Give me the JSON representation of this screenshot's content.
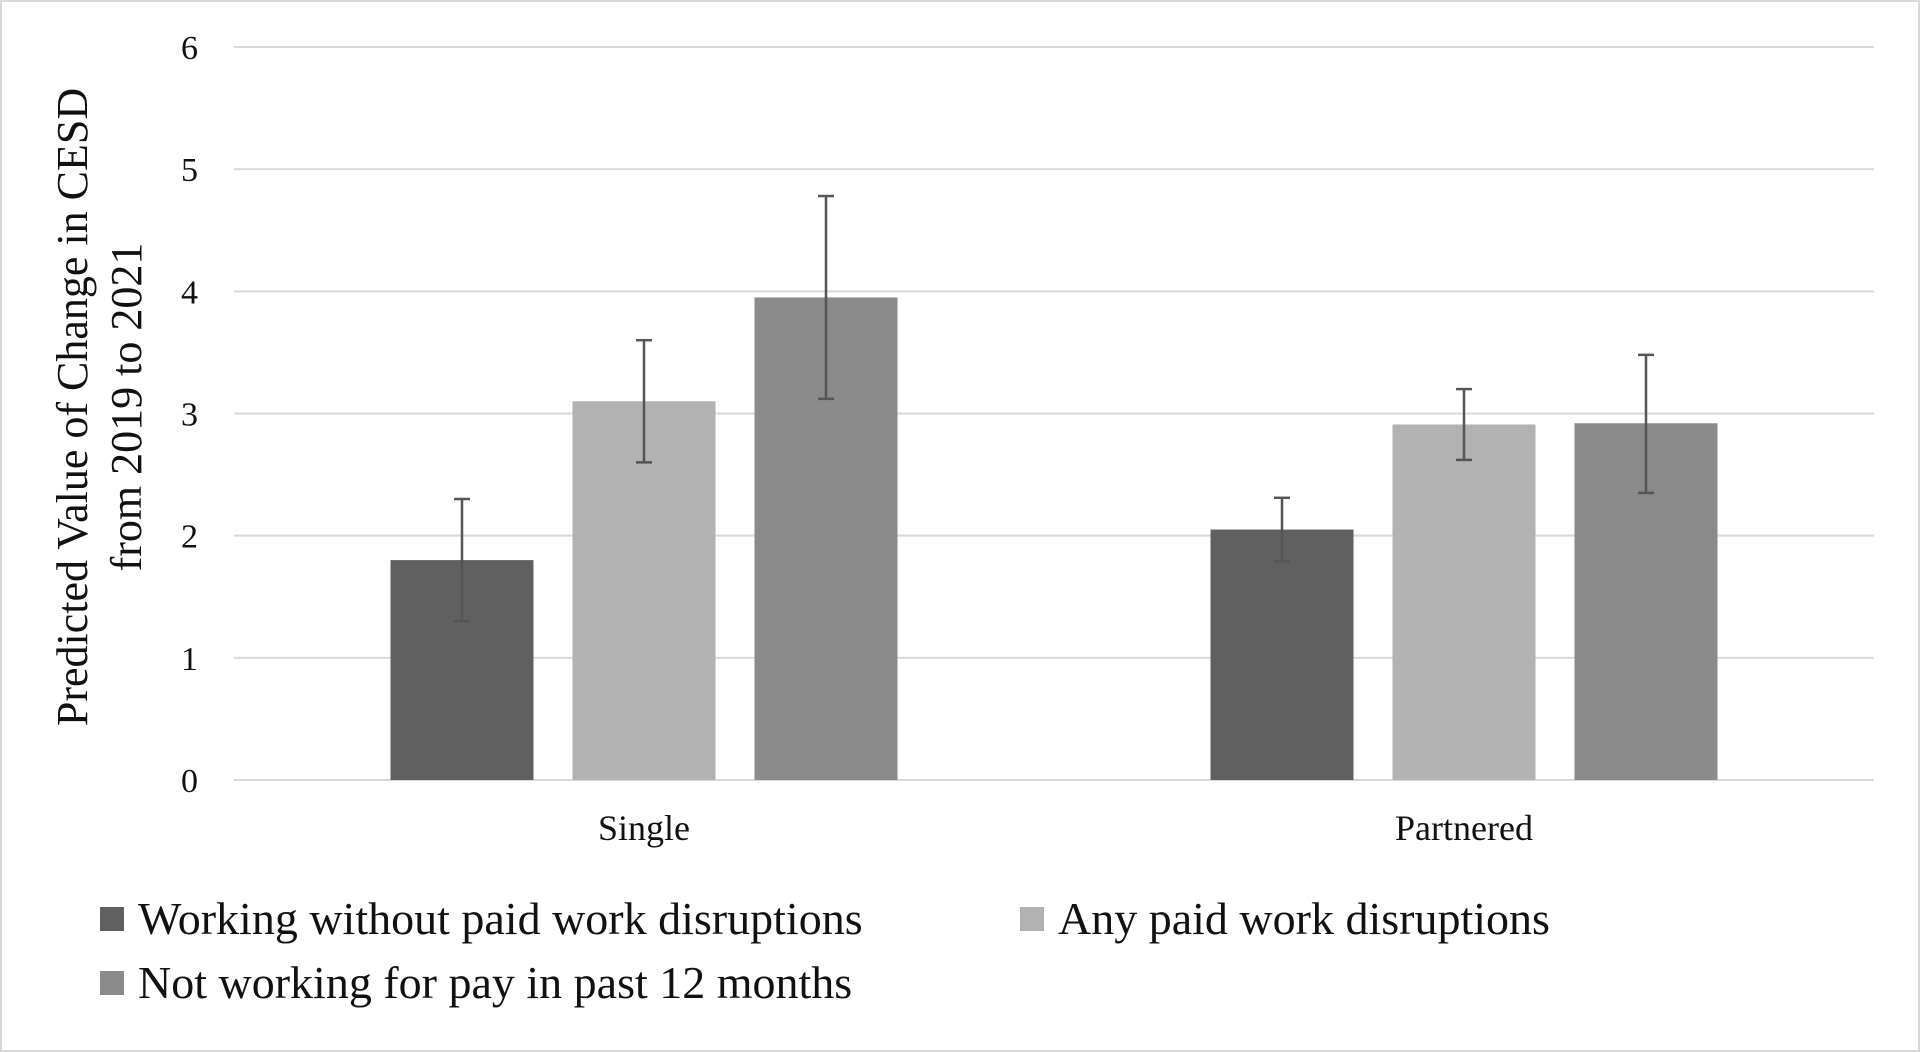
{
  "chart_data": {
    "type": "bar",
    "title": "",
    "xlabel": "",
    "ylabel_lines": [
      "Predicted Value of Change in CESD",
      "from 2019 to 2021"
    ],
    "categories": [
      "Single",
      "Partnered"
    ],
    "ylim": [
      0,
      6
    ],
    "yticks": [
      "0",
      "1",
      "2",
      "3",
      "4",
      "5",
      "6"
    ],
    "grid": true,
    "legend_position": "bottom",
    "series": [
      {
        "name": "Working without paid work disruptions",
        "color": "#606060",
        "values": [
          1.8,
          2.05
        ],
        "error_low": [
          1.3,
          1.79
        ],
        "error_high": [
          2.3,
          2.31
        ]
      },
      {
        "name": "Any paid work disruptions",
        "color": "#b2b2b2",
        "values": [
          3.1,
          2.91
        ],
        "error_low": [
          2.6,
          2.62
        ],
        "error_high": [
          3.6,
          3.2
        ]
      },
      {
        "name": "Not working for pay in past 12 months",
        "color": "#8a8a8a",
        "values": [
          3.95,
          2.92
        ],
        "error_low": [
          3.12,
          2.35
        ],
        "error_high": [
          4.78,
          3.48
        ]
      }
    ]
  }
}
